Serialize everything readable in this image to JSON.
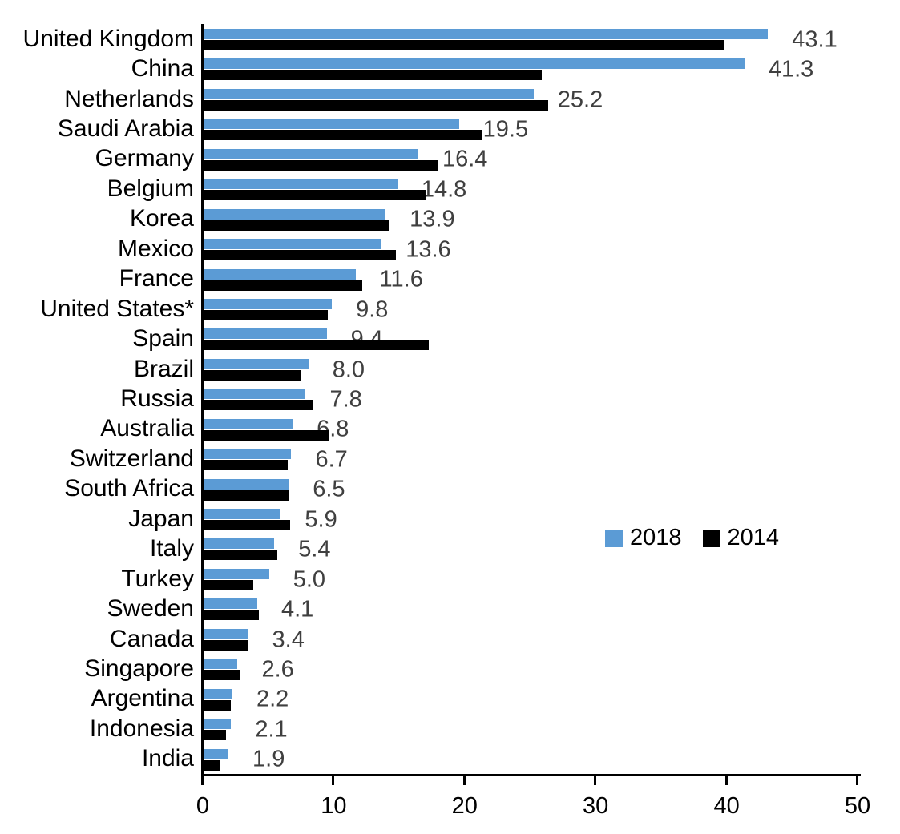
{
  "chart_data": {
    "type": "bar",
    "orientation": "horizontal",
    "title": "",
    "categories": [
      "United Kingdom",
      "China",
      "Netherlands",
      "Saudi Arabia",
      "Germany",
      "Belgium",
      "Korea",
      "Mexico",
      "France",
      "United States*",
      "Spain",
      "Brazil",
      "Russia",
      "Australia",
      "Switzerland",
      "South Africa",
      "Japan",
      "Italy",
      "Turkey",
      "Sweden",
      "Canada",
      "Singapore",
      "Argentina",
      "Indonesia",
      "India"
    ],
    "series": [
      {
        "name": "2018",
        "color": "#5B9BD5",
        "values": [
          43.1,
          41.3,
          25.2,
          19.5,
          16.4,
          14.8,
          13.9,
          13.6,
          11.6,
          9.8,
          9.4,
          8.0,
          7.8,
          6.8,
          6.7,
          6.5,
          5.9,
          5.4,
          5.0,
          4.1,
          3.4,
          2.6,
          2.2,
          2.1,
          1.9
        ]
      },
      {
        "name": "2014",
        "color": "#000000",
        "values": [
          39.7,
          25.8,
          26.3,
          21.3,
          17.9,
          17.0,
          14.2,
          14.7,
          12.1,
          9.5,
          17.2,
          7.4,
          8.3,
          9.6,
          6.4,
          6.5,
          6.6,
          5.6,
          3.8,
          4.2,
          3.4,
          2.8,
          2.1,
          1.7,
          1.3
        ]
      }
    ],
    "data_labels": [
      "43.1",
      "41.3",
      "25.2",
      "19.5",
      "16.4",
      "14.8",
      "13.9",
      "13.6",
      "11.6",
      "9.8",
      "9.4",
      "8.0",
      "7.8",
      "6.8",
      "6.7",
      "6.5",
      "5.9",
      "5.4",
      "5.0",
      "4.1",
      "3.4",
      "2.6",
      "2.2",
      "2.1",
      "1.9"
    ],
    "data_label_series": "2018",
    "data_label_color": "#3F3F3F",
    "xlabel": "",
    "ylabel": "",
    "xlim": [
      0,
      50
    ],
    "x_ticks": [
      0,
      10,
      20,
      30,
      40,
      50
    ],
    "grid": false,
    "axis_color": "#000000",
    "legend": {
      "position": "middle-right",
      "entries": [
        {
          "label": "2018",
          "color": "#5B9BD5"
        },
        {
          "label": "2014",
          "color": "#000000"
        }
      ]
    }
  }
}
